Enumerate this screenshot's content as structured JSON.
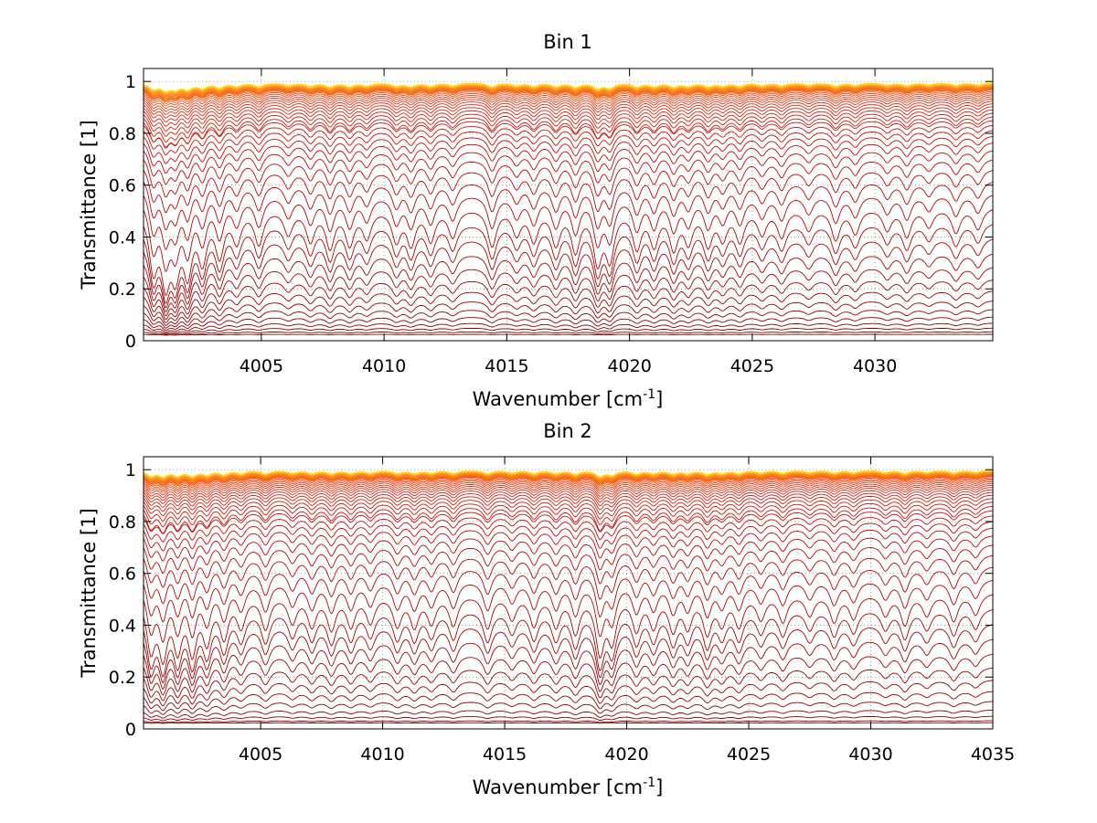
{
  "chart_data": [
    {
      "type": "line",
      "title": "Bin 1",
      "xlabel": "Wavenumber [cm",
      "xlabel_sup": "-1",
      "xlabel_end": "]",
      "ylabel": "Transmittance [1]",
      "xlim": [
        4000.2,
        4034.8
      ],
      "ylim": [
        0,
        1.05
      ],
      "x_ticks": [
        4005,
        4010,
        4015,
        4020,
        4025,
        4030
      ],
      "x_tick_labels": [
        "4005",
        "4010",
        "4015",
        "4020",
        "4025",
        "4030"
      ],
      "y_ticks": [
        0,
        0.2,
        0.4,
        0.6,
        0.8,
        1
      ],
      "y_tick_labels": [
        "0",
        "0.2",
        "0.4",
        "0.6",
        "0.8",
        "1"
      ],
      "grid": true,
      "colormap": "jet (dark red = low transmittance, orange/yellow = near 1)",
      "series_baselines": [
        0.005,
        0.015,
        0.03,
        0.05,
        0.075,
        0.105,
        0.14,
        0.18,
        0.225,
        0.275,
        0.33,
        0.39,
        0.45,
        0.51,
        0.565,
        0.615,
        0.66,
        0.7,
        0.735,
        0.765,
        0.79,
        0.812,
        0.832,
        0.85,
        0.866,
        0.88,
        0.893,
        0.905,
        0.916,
        0.926,
        0.935,
        0.943,
        0.95,
        0.957,
        0.963,
        0.968,
        0.973,
        0.977,
        0.981,
        0.985,
        0.988,
        0.991,
        0.994
      ],
      "absorption_lines": [
        4000.6,
        4001.1,
        4001.5,
        4002.0,
        4002.6,
        4003.3,
        4004.0,
        4004.9,
        4006.1,
        4007.0,
        4007.8,
        4008.6,
        4009.3,
        4010.5,
        4011.1,
        4011.9,
        4012.8,
        4014.4,
        4015.4,
        4016.1,
        4017.0,
        4017.8,
        4018.7,
        4019.2,
        4020.3,
        4021.0,
        4021.8,
        4022.4,
        4023.2,
        4023.8,
        4024.5,
        4025.4,
        4026.2,
        4027.3,
        4028.4,
        4029.2,
        4030.5,
        4031.3,
        4032.2,
        4033.3,
        4034.2
      ],
      "line_strengths": [
        0.9,
        1.0,
        0.85,
        0.9,
        0.75,
        0.7,
        0.5,
        0.55,
        0.4,
        0.5,
        0.6,
        0.55,
        0.45,
        0.5,
        0.55,
        0.5,
        0.45,
        0.6,
        0.4,
        0.5,
        0.55,
        0.65,
        0.8,
        0.75,
        0.6,
        0.55,
        0.6,
        0.5,
        0.55,
        0.45,
        0.5,
        0.4,
        0.45,
        0.35,
        0.5,
        0.4,
        0.35,
        0.45,
        0.3,
        0.4,
        0.35
      ]
    },
    {
      "type": "line",
      "title": "Bin 2",
      "xlabel": "Wavenumber [cm",
      "xlabel_sup": "-1",
      "xlabel_end": "]",
      "ylabel": "Transmittance [1]",
      "xlim": [
        4000.2,
        4035
      ],
      "ylim": [
        0,
        1.05
      ],
      "x_ticks": [
        4005,
        4010,
        4015,
        4020,
        4025,
        4030,
        4035
      ],
      "x_tick_labels": [
        "4005",
        "4010",
        "4015",
        "4020",
        "4025",
        "4030",
        "4035"
      ],
      "y_ticks": [
        0,
        0.2,
        0.4,
        0.6,
        0.8,
        1
      ],
      "y_tick_labels": [
        "0",
        "0.2",
        "0.4",
        "0.6",
        "0.8",
        "1"
      ],
      "grid": true,
      "colormap": "jet (dark red = low transmittance, orange/yellow = near 1)",
      "series_baselines": [
        0.004,
        0.012,
        0.03,
        0.055,
        0.09,
        0.13,
        0.175,
        0.225,
        0.28,
        0.34,
        0.4,
        0.46,
        0.52,
        0.575,
        0.625,
        0.67,
        0.71,
        0.745,
        0.775,
        0.8,
        0.822,
        0.842,
        0.86,
        0.876,
        0.89,
        0.903,
        0.914,
        0.924,
        0.933,
        0.941,
        0.948,
        0.955,
        0.961,
        0.966,
        0.971,
        0.975,
        0.979,
        0.983,
        0.986,
        0.989,
        0.992,
        0.995,
        0.997
      ],
      "absorption_lines": [
        4000.5,
        4001.0,
        4001.6,
        4002.2,
        4002.8,
        4003.5,
        4004.2,
        4005.2,
        4006.3,
        4007.1,
        4007.9,
        4008.7,
        4009.5,
        4010.6,
        4011.3,
        4012.0,
        4012.9,
        4014.3,
        4015.3,
        4016.2,
        4017.1,
        4017.9,
        4018.9,
        4019.4,
        4020.4,
        4021.1,
        4021.9,
        4022.5,
        4023.3,
        4023.9,
        4024.6,
        4025.5,
        4026.4,
        4027.5,
        4028.5,
        4029.3,
        4030.6,
        4031.4,
        4032.3,
        4033.4,
        4034.3
      ],
      "line_strengths": [
        0.85,
        0.9,
        0.8,
        0.85,
        0.7,
        0.65,
        0.5,
        0.55,
        0.45,
        0.5,
        0.55,
        0.5,
        0.45,
        0.5,
        0.5,
        0.45,
        0.5,
        0.55,
        0.4,
        0.5,
        0.5,
        0.6,
        0.9,
        0.7,
        0.55,
        0.5,
        0.55,
        0.5,
        0.6,
        0.45,
        0.5,
        0.4,
        0.45,
        0.35,
        0.45,
        0.4,
        0.35,
        0.5,
        0.35,
        0.45,
        0.35
      ]
    }
  ]
}
